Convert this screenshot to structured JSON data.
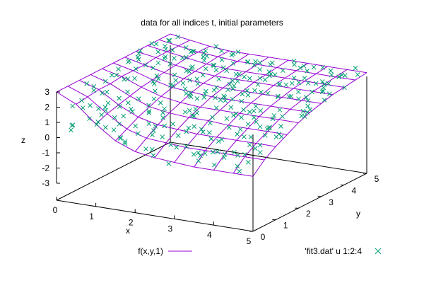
{
  "chart_data": {
    "type": "surface-3d",
    "title": "data for all indices t, initial parameters",
    "xlabel": "x",
    "ylabel": "y",
    "zlabel": "z",
    "xlim": [
      0,
      5
    ],
    "ylim": [
      0,
      5
    ],
    "zlim": [
      -3,
      3
    ],
    "x_ticks": [
      "0",
      "1",
      "2",
      "3",
      "4",
      "5"
    ],
    "y_ticks": [
      "0",
      "1",
      "2",
      "3",
      "4",
      "5"
    ],
    "z_ticks": [
      "3",
      "2",
      "1",
      "0",
      "-1",
      "-2",
      "-3"
    ],
    "legend": [
      {
        "label": "f(x,y,1)",
        "style": "line",
        "color": "#9400d3"
      },
      {
        "label": "'fit3.dat' u 1:2:4",
        "style": "cross",
        "color": "#009e73"
      }
    ],
    "surface": {
      "name": "f(x,y,1)",
      "x": [
        0,
        0.5,
        1,
        1.5,
        2,
        2.5,
        3,
        3.5,
        4,
        4.5,
        5
      ],
      "y": [
        0,
        0.5,
        1,
        1.5,
        2,
        2.5,
        3,
        3.5,
        4,
        4.5,
        5
      ],
      "z_by_x": [
        [
          3.0,
          3.0,
          3.0,
          3.0,
          3.0,
          3.0,
          3.0,
          3.0,
          3.0,
          3.0,
          3.0
        ],
        [
          2.4,
          2.5,
          2.6,
          2.6,
          2.7,
          2.7,
          2.7,
          2.8,
          2.8,
          2.8,
          2.8
        ],
        [
          1.3,
          1.6,
          1.8,
          2.0,
          2.2,
          2.3,
          2.4,
          2.5,
          2.6,
          2.6,
          2.6
        ],
        [
          0.4,
          0.8,
          1.2,
          1.5,
          1.8,
          2.0,
          2.2,
          2.3,
          2.4,
          2.5,
          2.5
        ],
        [
          -0.1,
          0.4,
          0.9,
          1.3,
          1.6,
          1.9,
          2.1,
          2.2,
          2.3,
          2.4,
          2.5
        ],
        [
          -0.3,
          0.3,
          0.8,
          1.2,
          1.5,
          1.8,
          2.0,
          2.2,
          2.3,
          2.4,
          2.5
        ],
        [
          -0.4,
          0.2,
          0.7,
          1.2,
          1.5,
          1.8,
          2.0,
          2.2,
          2.3,
          2.4,
          2.5
        ],
        [
          -0.5,
          0.2,
          0.7,
          1.1,
          1.5,
          1.8,
          2.0,
          2.2,
          2.3,
          2.4,
          2.5
        ],
        [
          -0.5,
          0.2,
          0.7,
          1.1,
          1.5,
          1.8,
          2.0,
          2.2,
          2.3,
          2.4,
          2.5
        ],
        [
          -0.5,
          0.2,
          0.7,
          1.1,
          1.5,
          1.8,
          2.0,
          2.2,
          2.3,
          2.4,
          2.5
        ],
        [
          -0.5,
          0.2,
          0.7,
          1.1,
          1.5,
          1.8,
          2.0,
          2.2,
          2.3,
          2.4,
          2.5
        ]
      ]
    },
    "points": {
      "name": "'fit3.dat' u 1:2:4",
      "samples_per_cell": 3,
      "scatter_amplitude": 0.25
    },
    "colors": {
      "surface": "#9400d3",
      "points": "#009e73",
      "axes": "#000000"
    }
  }
}
